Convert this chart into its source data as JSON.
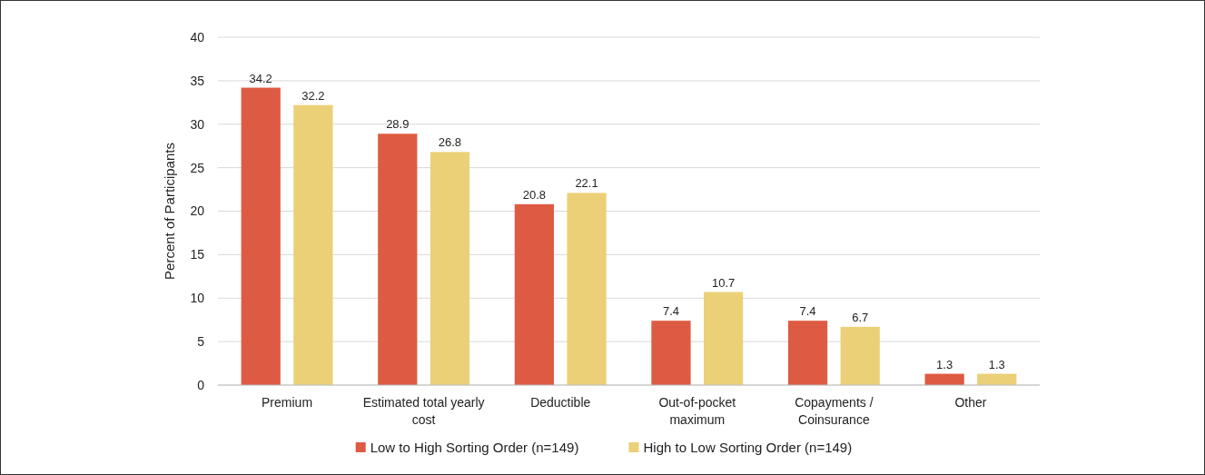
{
  "chart_data": {
    "type": "bar",
    "ylabel": "Percent of Participants",
    "categories": [
      "Premium",
      "Estimated total yearly cost",
      "Deductible",
      "Out-of-pocket maximum",
      "Copayments / Coinsurance",
      "Other"
    ],
    "series": [
      {
        "name": "Low to High Sorting Order (n=149)",
        "color": "#de5b43",
        "values": [
          34.2,
          28.9,
          20.8,
          7.4,
          7.4,
          1.3
        ]
      },
      {
        "name": "High to Low Sorting Order (n=149)",
        "color": "#ebd077",
        "values": [
          32.2,
          26.8,
          22.1,
          10.7,
          6.7,
          1.3
        ]
      }
    ],
    "ylim": [
      0,
      40
    ],
    "yticks": [
      0,
      5,
      10,
      15,
      20,
      25,
      30,
      35,
      40
    ],
    "grid": "y",
    "legend": "bottom",
    "data_labels": true
  }
}
